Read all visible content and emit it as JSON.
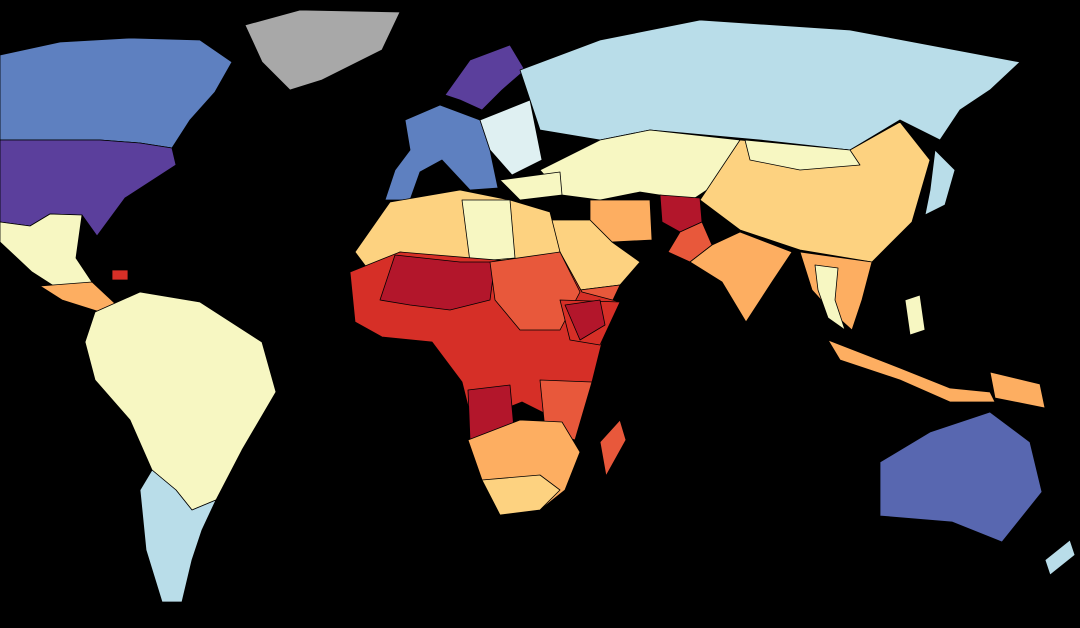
{
  "map": {
    "background": "#000000",
    "palette": {
      "purple": "#5b3f9c",
      "blue": "#5e80c0",
      "blue_au": "#5867b0",
      "light_blue": "#b9dde9",
      "pale_blue": "#dff0f2",
      "pale_yellow": "#f7f7c2",
      "light_orange": "#fdd280",
      "orange": "#fdae61",
      "red_orange": "#e8583b",
      "red": "#d62f27",
      "dark_red": "#b3162b",
      "no_data": "#a8a8a8"
    },
    "regions": {
      "canada": "blue",
      "usa": "purple",
      "mexico": "pale_yellow",
      "central-america": "orange",
      "caribbean": "red",
      "greenland": "no_data",
      "south-america-north": "pale_yellow",
      "south-america-south": "light_blue",
      "western-europe": "blue",
      "scandinavia": "purple",
      "eastern-europe": "pale_blue",
      "russia": "light_blue",
      "central-asia": "pale_yellow",
      "turkey": "pale_yellow",
      "china": "light_orange",
      "mongolia": "pale_yellow",
      "iran": "orange",
      "afghanistan": "dark_red",
      "pakistan": "red_orange",
      "india": "orange",
      "arabia": "light_orange",
      "yemen": "red_orange",
      "southeast-asia": "orange",
      "thailand": "pale_yellow",
      "indonesia": "orange",
      "philippines": "pale_yellow",
      "papua": "orange",
      "japan": "light_blue",
      "australia": "blue_au",
      "new-zealand": "light_blue",
      "north-africa": "light_orange",
      "libya": "pale_yellow",
      "sahel": "red",
      "mali-niger": "dark_red",
      "central-africa": "red_orange",
      "horn-of-africa": "red",
      "somalia-ethiopia": "dark_red",
      "angola": "dark_red",
      "east-africa": "red_orange",
      "southern-africa": "orange",
      "south-africa": "light_orange",
      "madagascar": "red_orange"
    }
  }
}
